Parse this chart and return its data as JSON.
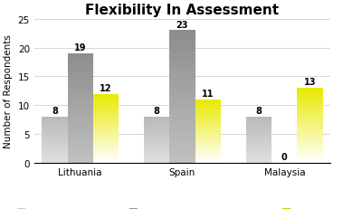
{
  "title": "Flexibility In Assessment",
  "ylabel": "Number of Respondents",
  "categories": [
    "Lithuania",
    "Spain",
    "Malaysia"
  ],
  "series": {
    "Flexible space at home": [
      8,
      8,
      8
    ],
    "Effective feedback from lecturers": [
      19,
      23,
      0
    ],
    "Flexible time": [
      12,
      11,
      13
    ]
  },
  "ylim": [
    0,
    25
  ],
  "yticks": [
    0,
    5,
    10,
    15,
    20,
    25
  ],
  "bar_width": 0.25,
  "background_color": "#ffffff",
  "title_fontsize": 11,
  "axis_fontsize": 7.5,
  "legend_fontsize": 6.5,
  "label_fontsize": 7,
  "gradient_home_top": "#b8b8b8",
  "gradient_home_bottom": "#e0e0e0",
  "gradient_feedback_top": "#8c8c8c",
  "gradient_feedback_bottom": "#c0c0c0",
  "gradient_time_top": "#e8e800",
  "gradient_time_bottom": "#ffffff"
}
